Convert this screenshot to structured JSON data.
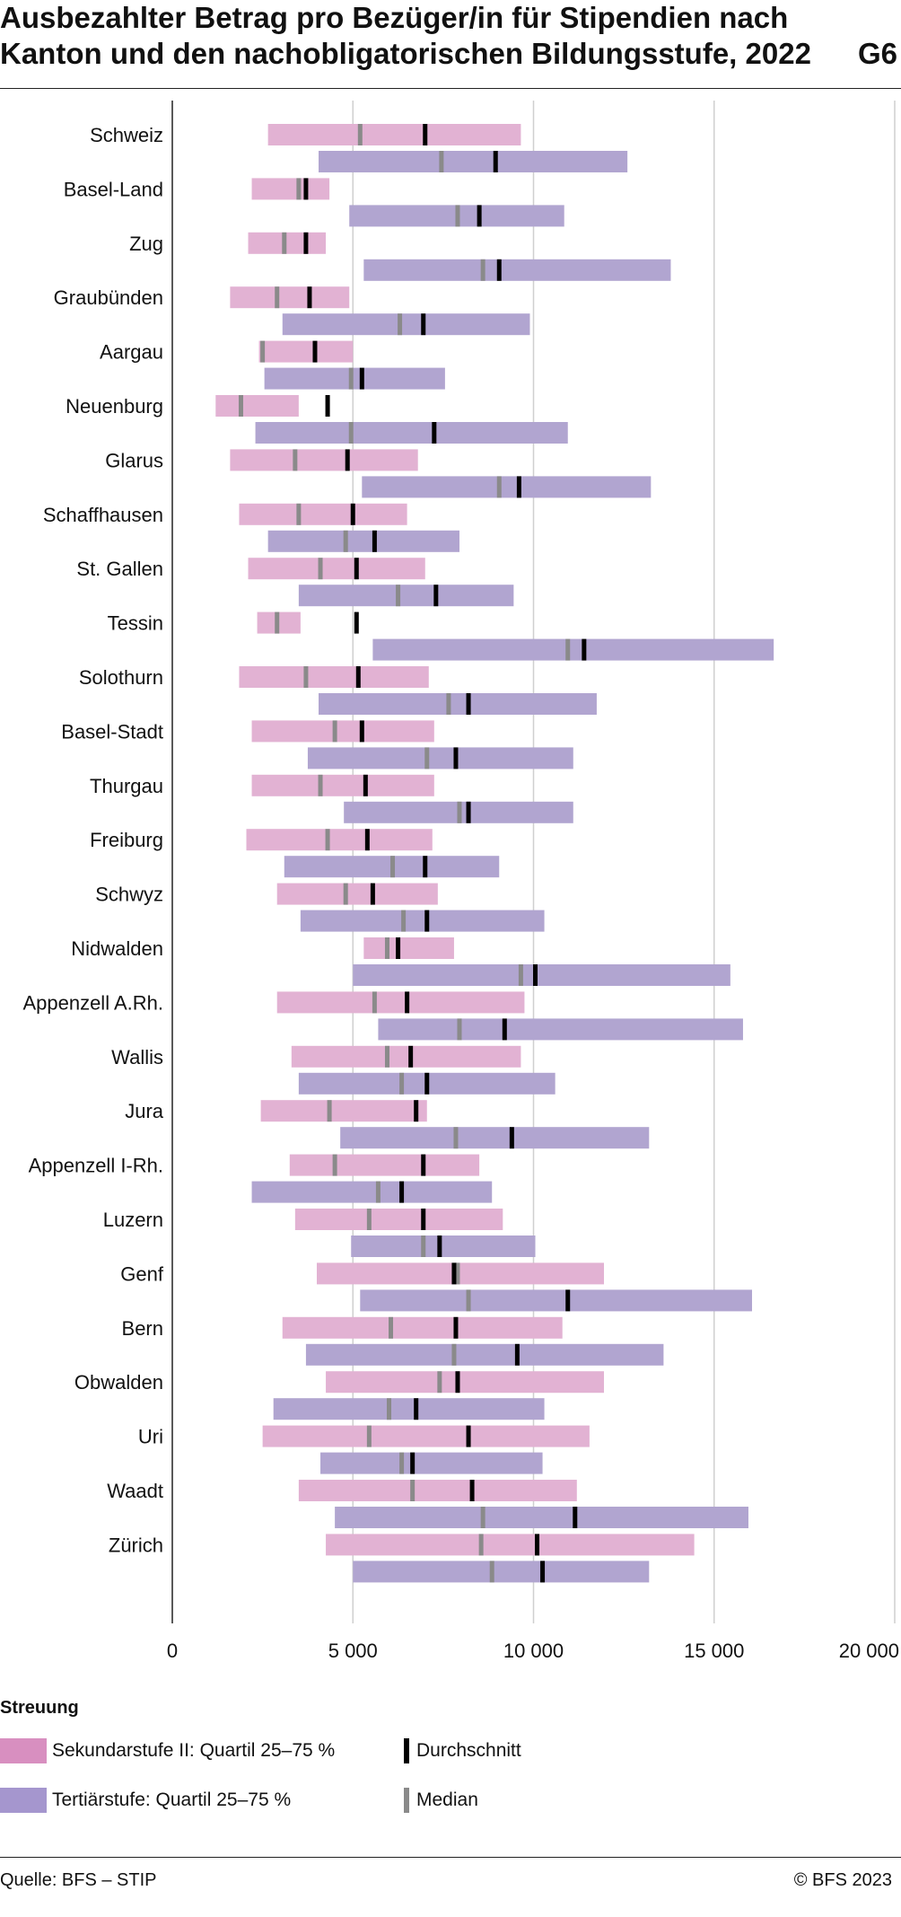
{
  "title": {
    "line1": "Ausbezahlter Betrag pro Bezüger/in für Stipendien nach",
    "line2": "Kanton und den nachobligatorischen Bildungsstufe, 2022",
    "figure_tag": "G6"
  },
  "legend": {
    "heading": "Streuung",
    "secondary_label": "Sekundarstufe II: Quartil 25–75 %",
    "tertiary_label": "Tertiärstufe: Quartil 25–75 %",
    "mean_label": "Durchschnitt",
    "median_label": "Median"
  },
  "footer": {
    "source": "Quelle: BFS – STIP",
    "copyright": "© BFS 2023"
  },
  "colors": {
    "secondary": "#e2b2d3",
    "tertiary": "#b1a5d0",
    "secondary_swatch": "#d88fc0",
    "tertiary_swatch": "#a596ce",
    "mean": "#000000",
    "median": "#8a8a8a",
    "grid": "#cfcfcf"
  },
  "chart_data": {
    "type": "range-bar",
    "orientation": "horizontal",
    "x_range": [
      0,
      20000
    ],
    "x_ticks": [
      0,
      5000,
      10000,
      15000,
      20000
    ],
    "x_tick_labels": [
      "0",
      "5 000",
      "10 000",
      "15 000",
      "20 000"
    ],
    "grid": true,
    "legend_position": "bottom",
    "categories": [
      "Schweiz",
      "Basel-Land",
      "Zug",
      "Graubünden",
      "Aargau",
      "Neuenburg",
      "Glarus",
      "Schaffhausen",
      "St. Gallen",
      "Tessin",
      "Solothurn",
      "Basel-Stadt",
      "Thurgau",
      "Freiburg",
      "Schwyz",
      "Nidwalden",
      "Appenzell A.Rh.",
      "Wallis",
      "Jura",
      "Appenzell I-Rh.",
      "Luzern",
      "Genf",
      "Bern",
      "Obwalden",
      "Uri",
      "Waadt",
      "Zürich"
    ],
    "series": [
      {
        "name": "Sekundarstufe II",
        "q25": [
          2650,
          2200,
          2100,
          1600,
          2400,
          1200,
          1600,
          1850,
          2100,
          2350,
          1850,
          2200,
          2200,
          2050,
          2900,
          5300,
          2900,
          3300,
          2450,
          3250,
          3400,
          4000,
          3050,
          4250,
          2500,
          3500,
          4250
        ],
        "q75": [
          9650,
          4350,
          4250,
          4900,
          5000,
          3500,
          6800,
          6500,
          7000,
          3550,
          7100,
          7250,
          7250,
          7200,
          7350,
          7800,
          9750,
          9650,
          7050,
          8500,
          9150,
          11950,
          10800,
          11950,
          11550,
          11200,
          14450
        ],
        "median": [
          5200,
          3500,
          3100,
          2900,
          2500,
          1900,
          3400,
          3500,
          4100,
          2900,
          3700,
          4500,
          4100,
          4300,
          4800,
          5950,
          5600,
          5950,
          4350,
          4500,
          5450,
          7900,
          6050,
          7400,
          5450,
          6650,
          8550
        ],
        "mean": [
          7000,
          3700,
          3700,
          3800,
          3950,
          4300,
          4850,
          5000,
          5100,
          5100,
          5150,
          5250,
          5350,
          5400,
          5550,
          6250,
          6500,
          6600,
          6750,
          6950,
          6950,
          7800,
          7850,
          7900,
          8200,
          8300,
          10100
        ]
      },
      {
        "name": "Tertiärstufe",
        "q25": [
          4050,
          4900,
          5300,
          3050,
          2550,
          2300,
          5250,
          2650,
          3500,
          5550,
          4050,
          3750,
          4750,
          3100,
          3550,
          5000,
          5700,
          3500,
          4650,
          2200,
          4950,
          5200,
          3700,
          2800,
          4100,
          4500,
          5000
        ],
        "q75": [
          12600,
          10850,
          13800,
          9900,
          7550,
          10950,
          13250,
          7950,
          9450,
          16650,
          11750,
          11100,
          11100,
          9050,
          10300,
          15450,
          15800,
          10600,
          13200,
          8850,
          10050,
          16050,
          13600,
          10300,
          10250,
          15950,
          13200
        ],
        "median": [
          7450,
          7900,
          8600,
          6300,
          4950,
          4950,
          9050,
          4800,
          6250,
          10950,
          7650,
          7050,
          7950,
          6100,
          6400,
          9650,
          7950,
          6350,
          7850,
          5700,
          6950,
          8200,
          7800,
          6000,
          6350,
          8600,
          8850
        ],
        "mean": [
          8950,
          8500,
          9050,
          6950,
          5250,
          7250,
          9600,
          5600,
          7300,
          11400,
          8200,
          7850,
          8200,
          7000,
          7050,
          10050,
          9200,
          7050,
          9400,
          6350,
          7400,
          10950,
          9550,
          6750,
          6650,
          11150,
          10250
        ]
      }
    ]
  }
}
